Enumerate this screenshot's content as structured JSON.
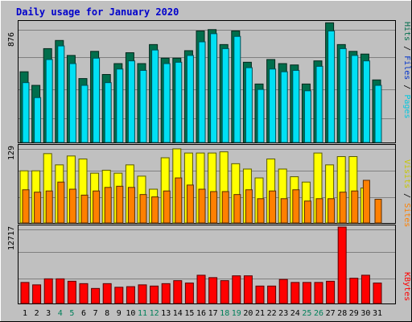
{
  "chart_data": [
    {
      "type": "bar",
      "title": "Daily usage for January 2020",
      "max_label": "876",
      "legend": [
        "Pages",
        "Files",
        "Hits"
      ],
      "categories": [
        "1",
        "2",
        "3",
        "4",
        "5",
        "6",
        "7",
        "8",
        "9",
        "10",
        "11",
        "12",
        "13",
        "14",
        "15",
        "16",
        "17",
        "18",
        "19",
        "20",
        "21",
        "22",
        "23",
        "24",
        "25",
        "26",
        "27",
        "28",
        "29",
        "30",
        "31"
      ],
      "ylim": [
        0,
        876
      ],
      "series": [
        {
          "name": "Hits",
          "color": "#006e4c",
          "values": [
            520,
            420,
            690,
            750,
            640,
            470,
            670,
            500,
            580,
            660,
            580,
            720,
            620,
            620,
            675,
            820,
            830,
            720,
            820,
            590,
            430,
            610,
            580,
            570,
            430,
            600,
            880,
            720,
            670,
            650,
            460
          ]
        },
        {
          "name": "Files",
          "color": "#00e0f4",
          "values": [
            440,
            330,
            610,
            710,
            580,
            420,
            620,
            440,
            540,
            600,
            530,
            680,
            580,
            590,
            640,
            740,
            800,
            690,
            780,
            550,
            390,
            540,
            520,
            530,
            380,
            560,
            820,
            690,
            640,
            600,
            420
          ]
        },
        {
          "name": "Pages",
          "color": "#0033cc",
          "values": [
            0,
            0,
            0,
            0,
            0,
            0,
            0,
            0,
            0,
            0,
            0,
            0,
            0,
            0,
            0,
            0,
            0,
            0,
            0,
            0,
            0,
            0,
            0,
            0,
            0,
            0,
            0,
            0,
            0,
            0,
            0
          ]
        }
      ]
    },
    {
      "type": "bar",
      "max_label": "129",
      "legend": [
        "Sites",
        "Visits"
      ],
      "categories": [
        "1",
        "2",
        "3",
        "4",
        "5",
        "6",
        "7",
        "8",
        "9",
        "10",
        "11",
        "12",
        "13",
        "14",
        "15",
        "16",
        "17",
        "18",
        "19",
        "20",
        "21",
        "22",
        "23",
        "24",
        "25",
        "26",
        "27",
        "28",
        "29",
        "30",
        "31"
      ],
      "ylim": [
        0,
        129
      ],
      "series": [
        {
          "name": "Visits",
          "color": "#ffff00",
          "values": [
            88,
            88,
            117,
            98,
            113,
            108,
            84,
            89,
            84,
            98,
            79,
            57,
            110,
            125,
            118,
            118,
            118,
            120,
            100,
            91,
            76,
            108,
            91,
            78,
            69,
            118,
            98,
            112,
            112,
            59,
            0
          ]
        },
        {
          "name": "Sites",
          "color": "#ff8000",
          "values": [
            56,
            52,
            54,
            69,
            57,
            47,
            54,
            60,
            62,
            60,
            48,
            44,
            54,
            76,
            64,
            57,
            53,
            53,
            48,
            56,
            41,
            54,
            41,
            56,
            37,
            41,
            41,
            52,
            54,
            72,
            40
          ]
        }
      ]
    },
    {
      "type": "bar",
      "max_label": "12717",
      "legend": [
        "KBytes"
      ],
      "categories": [
        "1",
        "2",
        "3",
        "4",
        "5",
        "6",
        "7",
        "8",
        "9",
        "10",
        "11",
        "12",
        "13",
        "14",
        "15",
        "16",
        "17",
        "18",
        "19",
        "20",
        "21",
        "22",
        "23",
        "24",
        "25",
        "26",
        "27",
        "28",
        "29",
        "30",
        "31"
      ],
      "ylim": [
        0,
        12717
      ],
      "series": [
        {
          "name": "KBytes",
          "color": "#ff0000",
          "values": [
            3500,
            3100,
            4100,
            4100,
            3700,
            3300,
            2500,
            3300,
            2700,
            2800,
            3100,
            2900,
            3300,
            3800,
            3400,
            4700,
            4300,
            3800,
            4600,
            4600,
            2900,
            2900,
            4000,
            3500,
            3500,
            3500,
            3700,
            12717,
            4200,
            4700,
            3400
          ]
        }
      ]
    }
  ]
}
